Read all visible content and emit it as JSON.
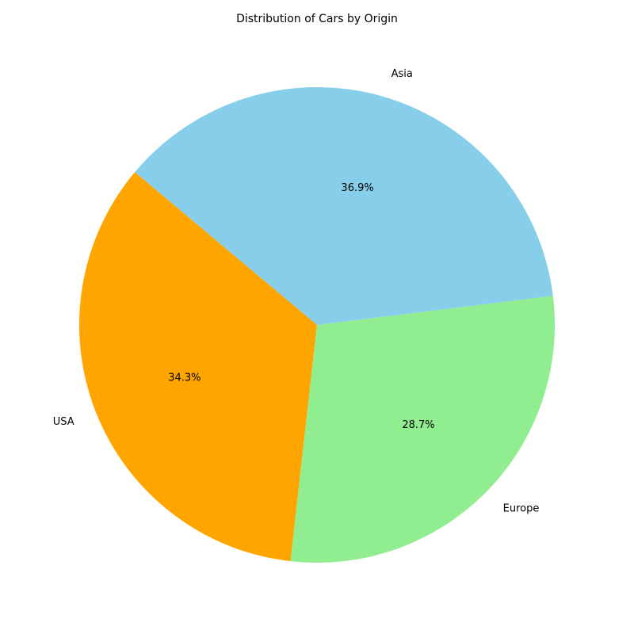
{
  "chart_data": {
    "type": "pie",
    "title": "Distribution of Cars by Origin",
    "categories": [
      "USA",
      "Europe",
      "Asia"
    ],
    "values": [
      34.3,
      28.7,
      36.9
    ],
    "percent_labels": [
      "34.3%",
      "28.7%",
      "36.9%"
    ],
    "colors": [
      "#ffa500",
      "#90ee90",
      "#87ceeb"
    ],
    "start_angle_deg": 140,
    "direction": "counterclockwise"
  }
}
